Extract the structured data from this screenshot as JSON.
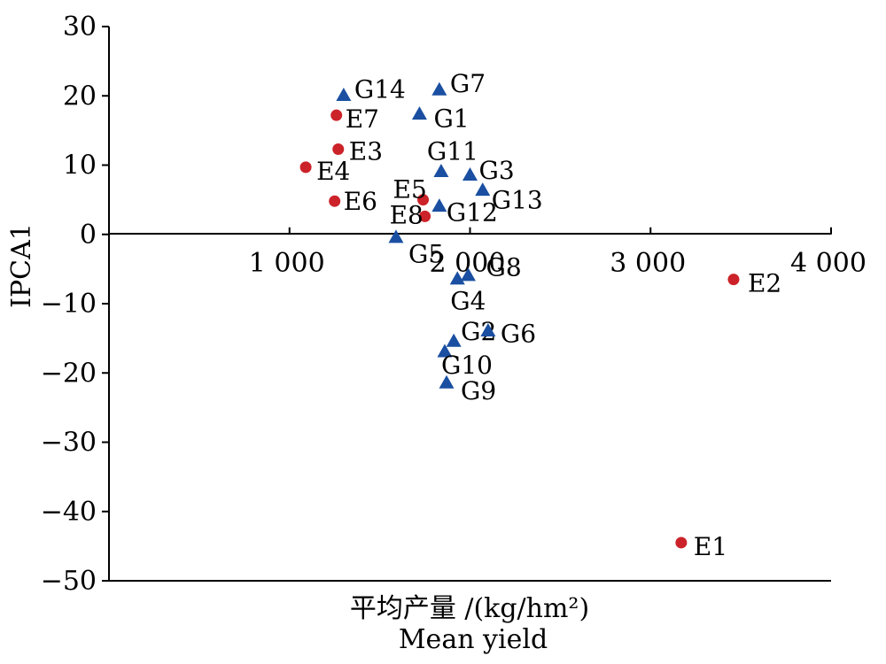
{
  "chart_data": {
    "type": "scatter",
    "title": "",
    "xlabel_line1": "平均产量 /(kg/hm²)",
    "xlabel_line2": "Mean yield",
    "ylabel": "IPCA1",
    "xlim": [
      0,
      4000
    ],
    "ylim": [
      -50,
      30
    ],
    "x_ticks": [
      1000,
      2000,
      3000,
      4000
    ],
    "x_tick_labels": [
      "1 000",
      "2 000",
      "3 000",
      "4 000"
    ],
    "y_ticks": [
      30,
      20,
      10,
      0,
      -10,
      -20,
      -30,
      -40,
      -50
    ],
    "y_tick_labels": [
      "30",
      "20",
      "10",
      "0",
      "−10",
      "−20",
      "−30",
      "−40",
      "−50"
    ],
    "grid": false,
    "series": [
      {
        "marker": "circle",
        "color": "#cc2229",
        "points": [
          {
            "label": "E1",
            "x": 3170,
            "y": -44.5
          },
          {
            "label": "E2",
            "x": 3460,
            "y": -6.5
          },
          {
            "label": "E3",
            "x": 1270,
            "y": 12.3
          },
          {
            "label": "E4",
            "x": 1090,
            "y": 9.7
          },
          {
            "label": "E5",
            "x": 1740,
            "y": 5.0
          },
          {
            "label": "E6",
            "x": 1250,
            "y": 4.8
          },
          {
            "label": "E7",
            "x": 1260,
            "y": 17.2
          },
          {
            "label": "E8",
            "x": 1750,
            "y": 2.6
          }
        ]
      },
      {
        "marker": "triangle",
        "color": "#1a4fa1",
        "points": [
          {
            "label": "G1",
            "x": 1720,
            "y": 17.3
          },
          {
            "label": "G2",
            "x": 1910,
            "y": -15.5
          },
          {
            "label": "G3",
            "x": 2000,
            "y": 8.5
          },
          {
            "label": "G4",
            "x": 1930,
            "y": -6.5
          },
          {
            "label": "G5",
            "x": 1590,
            "y": -0.5
          },
          {
            "label": "G6",
            "x": 2100,
            "y": -14.0
          },
          {
            "label": "G7",
            "x": 1830,
            "y": 20.8
          },
          {
            "label": "G8",
            "x": 1990,
            "y": -6.0
          },
          {
            "label": "G9",
            "x": 1870,
            "y": -21.5
          },
          {
            "label": "G10",
            "x": 1860,
            "y": -17.0
          },
          {
            "label": "G11",
            "x": 1840,
            "y": 9.0
          },
          {
            "label": "G12",
            "x": 1830,
            "y": 4.0
          },
          {
            "label": "G13",
            "x": 2070,
            "y": 6.3
          },
          {
            "label": "G14",
            "x": 1300,
            "y": 20.0
          }
        ]
      }
    ]
  }
}
